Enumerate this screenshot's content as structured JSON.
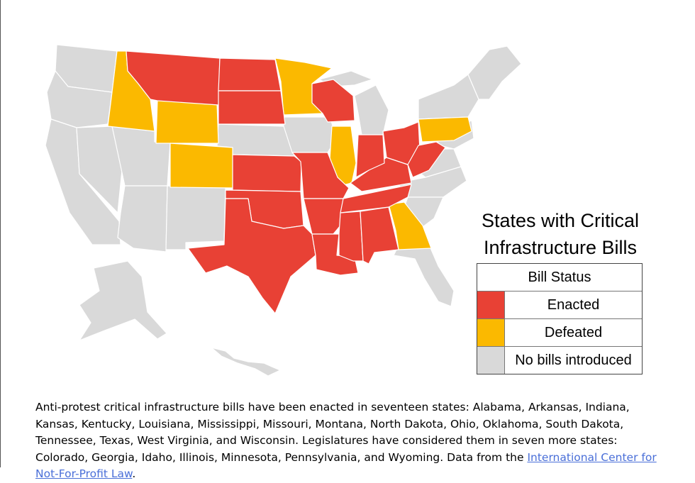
{
  "title": {
    "line1": "States with Critical",
    "line2": "Infrastructure Bills"
  },
  "legend": {
    "header": "Bill Status",
    "items": [
      {
        "label": "Enacted",
        "color": "#e84135"
      },
      {
        "label": "Defeated",
        "color": "#fbb900"
      },
      {
        "label": "No bills introduced",
        "color": "#d9d9d9"
      }
    ]
  },
  "states": {
    "enacted": [
      "Alabama",
      "Arkansas",
      "Indiana",
      "Kansas",
      "Kentucky",
      "Louisiana",
      "Mississippi",
      "Missouri",
      "Montana",
      "North Dakota",
      "Ohio",
      "Oklahoma",
      "South Dakota",
      "Tennessee",
      "Texas",
      "West Virginia",
      "Wisconsin"
    ],
    "defeated": [
      "Colorado",
      "Georgia",
      "Idaho",
      "Illinois",
      "Minnesota",
      "Pennsylvania",
      "Wyoming"
    ]
  },
  "caption": {
    "text": "Anti-protest critical infrastructure bills have been enacted in seventeen states: Alabama, Arkansas, Indiana, Kansas, Kentucky, Louisiana, Mississippi, Missouri, Montana, North Dakota, Ohio, Oklahoma, South Dakota, Tennessee, Texas, West Virginia, and Wisconsin. Legislatures have considered them in seven more states: Colorado, Georgia, Idaho, Illinois, Minnesota, Pennsylvania, and Wyoming. Data from the ",
    "link_text": "International Center for Not-For-Profit Law",
    "end": "."
  }
}
